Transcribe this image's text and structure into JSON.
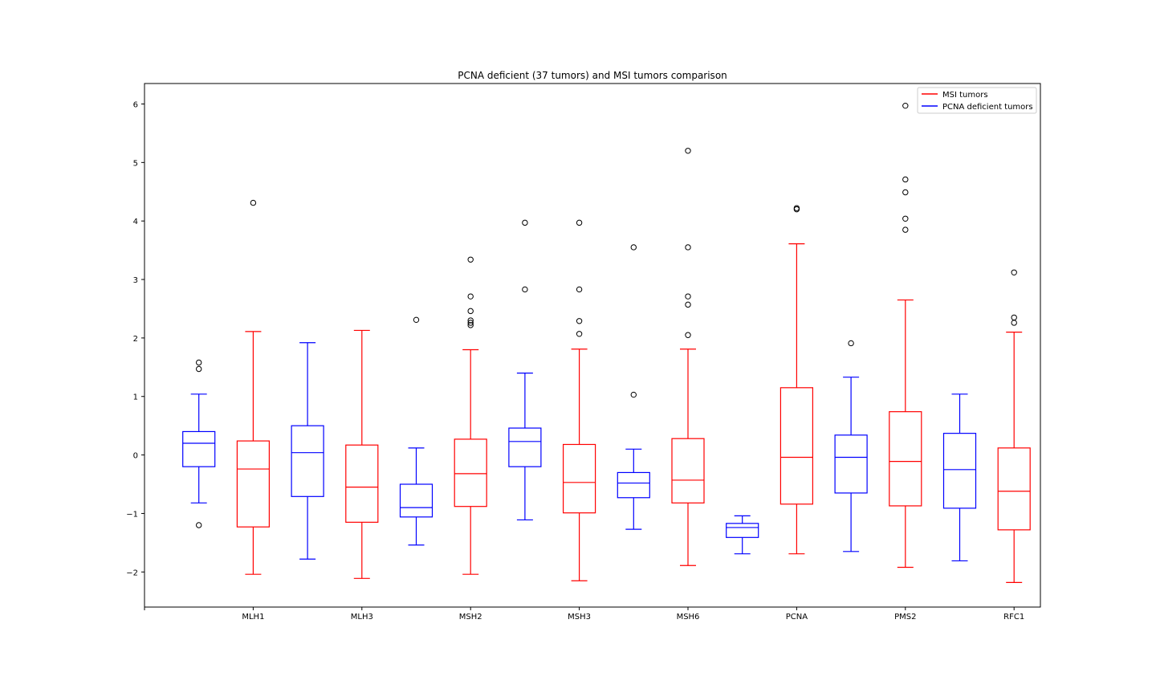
{
  "chart_data": {
    "type": "box",
    "title": "PCNA deficient (37 tumors) and MSI tumors comparison",
    "xlabel": "",
    "ylabel": "",
    "ylim": [
      -2.6,
      6.35
    ],
    "yticks": [
      -2,
      -1,
      0,
      1,
      2,
      3,
      4,
      5,
      6
    ],
    "grid": false,
    "legend_position": "top-right",
    "tick_labels": [
      "MLH1",
      "MLH3",
      "MSH2",
      "MSH3",
      "MSH6",
      "PCNA",
      "PMS2",
      "RFC1"
    ],
    "series": [
      {
        "name": "MSI tumors",
        "color": "#ff0000"
      },
      {
        "name": "PCNA deficient tumors",
        "color": "#0000ff"
      }
    ],
    "boxes": [
      {
        "series": 1,
        "pos": 1,
        "whislo": -0.82,
        "q1": -0.2,
        "med": 0.2,
        "q3": 0.4,
        "whishi": 1.04,
        "fliers": [
          1.58,
          1.47,
          -1.2
        ]
      },
      {
        "series": 0,
        "pos": 2,
        "whislo": -2.04,
        "q1": -1.23,
        "med": -0.24,
        "q3": 0.24,
        "whishi": 2.11,
        "fliers": [
          4.31
        ]
      },
      {
        "series": 1,
        "pos": 3,
        "whislo": -1.78,
        "q1": -0.71,
        "med": 0.04,
        "q3": 0.5,
        "whishi": 1.92,
        "fliers": []
      },
      {
        "series": 0,
        "pos": 4,
        "whislo": -2.11,
        "q1": -1.15,
        "med": -0.55,
        "q3": 0.17,
        "whishi": 2.13,
        "fliers": []
      },
      {
        "series": 1,
        "pos": 5,
        "whislo": -1.54,
        "q1": -1.06,
        "med": -0.9,
        "q3": -0.5,
        "whishi": 0.12,
        "fliers": [
          2.31
        ]
      },
      {
        "series": 0,
        "pos": 6,
        "whislo": -2.04,
        "q1": -0.88,
        "med": -0.32,
        "q3": 0.27,
        "whishi": 1.8,
        "fliers": [
          3.34,
          2.71,
          2.46,
          2.3,
          2.26,
          2.22
        ]
      },
      {
        "series": 1,
        "pos": 7,
        "whislo": -1.11,
        "q1": -0.2,
        "med": 0.23,
        "q3": 0.46,
        "whishi": 1.4,
        "fliers": [
          3.97,
          2.83
        ]
      },
      {
        "series": 0,
        "pos": 8,
        "whislo": -2.15,
        "q1": -0.99,
        "med": -0.47,
        "q3": 0.18,
        "whishi": 1.81,
        "fliers": [
          3.97,
          2.83,
          2.29,
          2.07
        ]
      },
      {
        "series": 1,
        "pos": 9,
        "whislo": -1.27,
        "q1": -0.73,
        "med": -0.48,
        "q3": -0.3,
        "whishi": 0.1,
        "fliers": [
          3.55,
          1.03
        ]
      },
      {
        "series": 0,
        "pos": 10,
        "whislo": -1.89,
        "q1": -0.82,
        "med": -0.43,
        "q3": 0.28,
        "whishi": 1.81,
        "fliers": [
          5.2,
          3.55,
          2.71,
          2.57,
          2.05
        ]
      },
      {
        "series": 1,
        "pos": 11,
        "whislo": -1.69,
        "q1": -1.41,
        "med": -1.24,
        "q3": -1.17,
        "whishi": -1.04,
        "fliers": []
      },
      {
        "series": 0,
        "pos": 12,
        "whislo": -1.69,
        "q1": -0.84,
        "med": -0.04,
        "q3": 1.15,
        "whishi": 3.61,
        "fliers": [
          4.22,
          4.2
        ]
      },
      {
        "series": 1,
        "pos": 13,
        "whislo": -1.65,
        "q1": -0.65,
        "med": -0.04,
        "q3": 0.34,
        "whishi": 1.33,
        "fliers": [
          1.91
        ]
      },
      {
        "series": 0,
        "pos": 14,
        "whislo": -1.92,
        "q1": -0.87,
        "med": -0.11,
        "q3": 0.74,
        "whishi": 2.65,
        "fliers": [
          5.97,
          4.71,
          4.49,
          4.04,
          3.85
        ]
      },
      {
        "series": 1,
        "pos": 15,
        "whislo": -1.81,
        "q1": -0.91,
        "med": -0.25,
        "q3": 0.37,
        "whishi": 1.04,
        "fliers": []
      },
      {
        "series": 0,
        "pos": 16,
        "whislo": -2.18,
        "q1": -1.28,
        "med": -0.62,
        "q3": 0.12,
        "whishi": 2.1,
        "fliers": [
          3.12,
          2.35,
          2.26
        ]
      }
    ]
  }
}
